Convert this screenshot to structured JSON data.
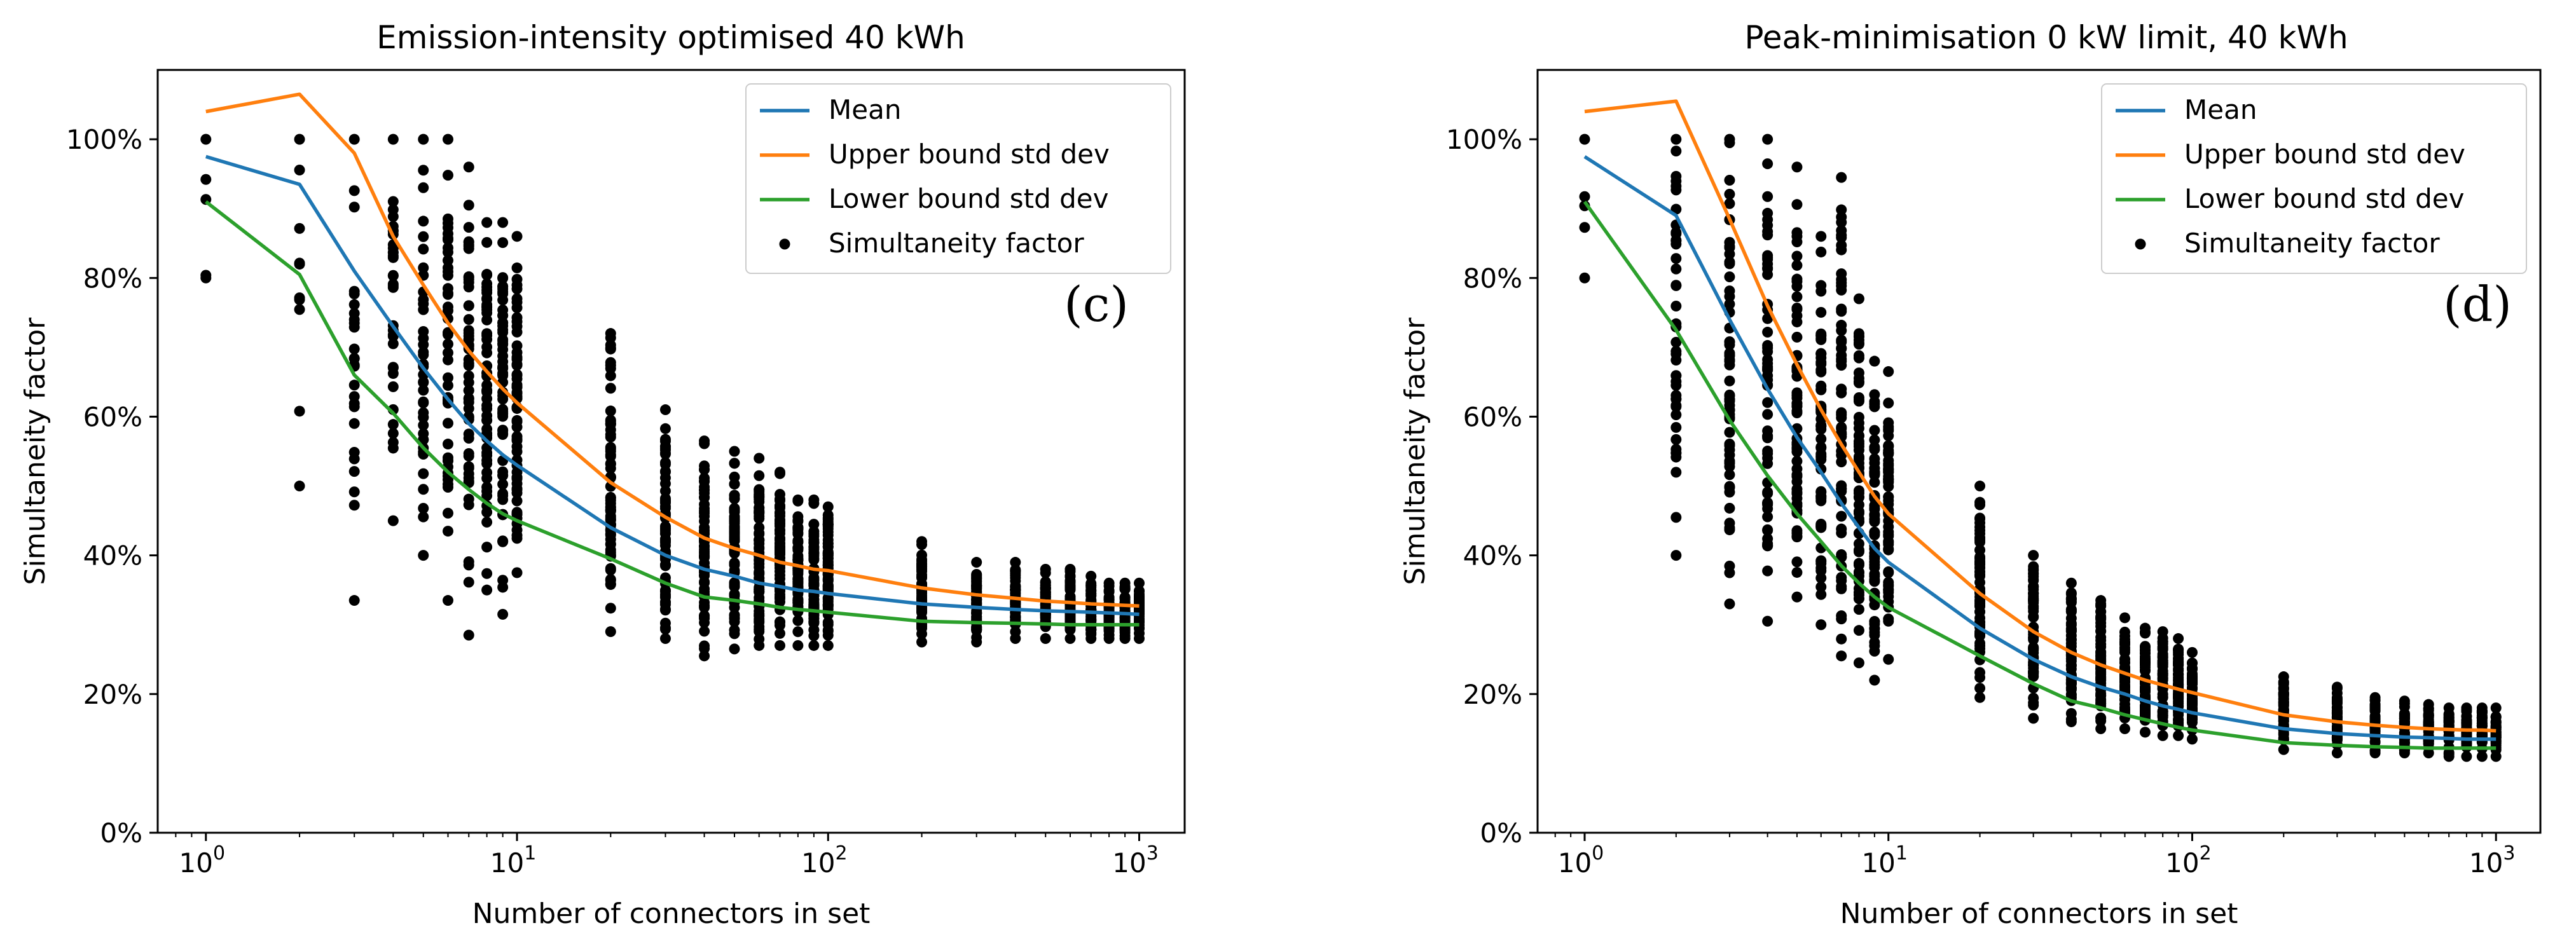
{
  "chart_data": [
    {
      "type": "scatter",
      "title": "Emission-intensity optimised 40 kWh",
      "panel_label": "(c)",
      "xlabel": "Number of connectors in set",
      "ylabel": "Simultaneity factor",
      "xscale": "log",
      "xlim": [
        0.7,
        1400
      ],
      "ylim": [
        0,
        110
      ],
      "x_ticks": [
        1,
        10,
        100,
        1000
      ],
      "x_tick_labels": [
        {
          "base": "10",
          "exp": "0"
        },
        {
          "base": "10",
          "exp": "1"
        },
        {
          "base": "10",
          "exp": "2"
        },
        {
          "base": "10",
          "exp": "3"
        }
      ],
      "y_ticks": [
        0,
        20,
        40,
        60,
        80,
        100
      ],
      "y_tick_labels": [
        "0%",
        "20%",
        "40%",
        "60%",
        "80%",
        "100%"
      ],
      "legend": {
        "position": "top-right",
        "entries": [
          {
            "label": "Mean",
            "color": "#1f77b4",
            "kind": "line"
          },
          {
            "label": "Upper bound std dev",
            "color": "#ff7f0e",
            "kind": "line"
          },
          {
            "label": "Lower bound std dev",
            "color": "#2ca02c",
            "kind": "line"
          },
          {
            "label": "Simultaneity factor",
            "color": "#000000",
            "kind": "dot"
          }
        ]
      },
      "series": [
        {
          "name": "Mean",
          "color": "#1f77b4",
          "x": [
            1,
            2,
            3,
            4,
            5,
            6,
            7,
            8,
            9,
            10,
            20,
            30,
            40,
            50,
            60,
            70,
            80,
            90,
            100,
            200,
            300,
            400,
            500,
            600,
            700,
            800,
            900,
            1000
          ],
          "y": [
            97.5,
            93.5,
            81,
            73,
            67,
            62.5,
            59,
            56.5,
            54.5,
            53,
            44,
            40,
            38,
            37,
            36,
            35.5,
            35,
            34.8,
            34.5,
            33,
            32.5,
            32.2,
            32,
            31.9,
            31.8,
            31.7,
            31.6,
            31.5
          ]
        },
        {
          "name": "Upper bound std dev",
          "color": "#ff7f0e",
          "x": [
            1,
            2,
            3,
            4,
            5,
            6,
            7,
            8,
            9,
            10,
            20,
            30,
            40,
            50,
            60,
            70,
            80,
            90,
            100,
            200,
            300,
            400,
            500,
            600,
            700,
            800,
            900,
            1000
          ],
          "y": [
            104,
            106.5,
            98,
            86,
            79,
            73.5,
            69.5,
            66.5,
            64,
            62,
            50.5,
            45.5,
            42.5,
            41,
            40,
            39,
            38.5,
            38,
            37.8,
            35.3,
            34.3,
            33.8,
            33.4,
            33.2,
            33,
            32.9,
            32.8,
            32.7
          ]
        },
        {
          "name": "Lower bound std dev",
          "color": "#2ca02c",
          "x": [
            1,
            2,
            3,
            4,
            5,
            6,
            7,
            8,
            9,
            10,
            20,
            30,
            40,
            50,
            60,
            70,
            80,
            90,
            100,
            200,
            300,
            400,
            500,
            600,
            700,
            800,
            900,
            1000
          ],
          "y": [
            91,
            80.5,
            66,
            60.5,
            55.5,
            52,
            49.5,
            47.5,
            46,
            45,
            39.5,
            36,
            34,
            33.5,
            33,
            32.5,
            32.2,
            32,
            31.8,
            30.5,
            30.3,
            30.2,
            30.1,
            30,
            30,
            30,
            30,
            30
          ]
        }
      ],
      "scatter": {
        "name": "Simultaneity factor",
        "color": "#000000",
        "columns": [
          {
            "x": 1,
            "min": 80,
            "max": 100,
            "n": 5
          },
          {
            "x": 2,
            "min": 50,
            "max": 100,
            "n": 10
          },
          {
            "x": 3,
            "min": 33.5,
            "max": 100,
            "n": 26
          },
          {
            "x": 4,
            "min": 45,
            "max": 100,
            "n": 34
          },
          {
            "x": 5,
            "min": 40,
            "max": 100,
            "n": 40
          },
          {
            "x": 6,
            "min": 33.5,
            "max": 100,
            "n": 46
          },
          {
            "x": 7,
            "min": 28.5,
            "max": 96,
            "n": 54
          },
          {
            "x": 8,
            "min": 35,
            "max": 88,
            "n": 56
          },
          {
            "x": 9,
            "min": 31.5,
            "max": 88,
            "n": 60
          },
          {
            "x": 10,
            "min": 37.5,
            "max": 86,
            "n": 60
          },
          {
            "x": 20,
            "min": 29,
            "max": 72,
            "n": 70
          },
          {
            "x": 30,
            "min": 28,
            "max": 61,
            "n": 70
          },
          {
            "x": 40,
            "min": 25.5,
            "max": 56.5,
            "n": 70
          },
          {
            "x": 50,
            "min": 26.5,
            "max": 55,
            "n": 70
          },
          {
            "x": 60,
            "min": 27,
            "max": 54,
            "n": 70
          },
          {
            "x": 70,
            "min": 27,
            "max": 52,
            "n": 70
          },
          {
            "x": 80,
            "min": 27,
            "max": 48,
            "n": 70
          },
          {
            "x": 90,
            "min": 27,
            "max": 48,
            "n": 70
          },
          {
            "x": 100,
            "min": 27,
            "max": 47,
            "n": 70
          },
          {
            "x": 200,
            "min": 27.5,
            "max": 42,
            "n": 60
          },
          {
            "x": 300,
            "min": 27.5,
            "max": 39,
            "n": 60
          },
          {
            "x": 400,
            "min": 28,
            "max": 39,
            "n": 56
          },
          {
            "x": 500,
            "min": 28,
            "max": 38,
            "n": 50
          },
          {
            "x": 600,
            "min": 28,
            "max": 38,
            "n": 50
          },
          {
            "x": 700,
            "min": 28,
            "max": 37,
            "n": 50
          },
          {
            "x": 800,
            "min": 28,
            "max": 36,
            "n": 48
          },
          {
            "x": 900,
            "min": 28,
            "max": 36,
            "n": 48
          },
          {
            "x": 1000,
            "min": 28,
            "max": 36,
            "n": 48
          }
        ]
      }
    },
    {
      "type": "scatter",
      "title": "Peak-minimisation 0 kW limit, 40 kWh",
      "panel_label": "(d)",
      "xlabel": "Number of connectors in set",
      "ylabel": "Simultaneity factor",
      "xscale": "log",
      "xlim": [
        0.7,
        1400
      ],
      "ylim": [
        0,
        110
      ],
      "x_ticks": [
        1,
        10,
        100,
        1000
      ],
      "x_tick_labels": [
        {
          "base": "10",
          "exp": "0"
        },
        {
          "base": "10",
          "exp": "1"
        },
        {
          "base": "10",
          "exp": "2"
        },
        {
          "base": "10",
          "exp": "3"
        }
      ],
      "y_ticks": [
        0,
        20,
        40,
        60,
        80,
        100
      ],
      "y_tick_labels": [
        "0%",
        "20%",
        "40%",
        "60%",
        "80%",
        "100%"
      ],
      "legend": {
        "position": "top-right",
        "entries": [
          {
            "label": "Mean",
            "color": "#1f77b4",
            "kind": "line"
          },
          {
            "label": "Upper bound std dev",
            "color": "#ff7f0e",
            "kind": "line"
          },
          {
            "label": "Lower bound std dev",
            "color": "#2ca02c",
            "kind": "line"
          },
          {
            "label": "Simultaneity factor",
            "color": "#000000",
            "kind": "dot"
          }
        ]
      },
      "series": [
        {
          "name": "Mean",
          "color": "#1f77b4",
          "x": [
            1,
            2,
            3,
            4,
            5,
            6,
            7,
            8,
            9,
            10,
            20,
            30,
            40,
            50,
            60,
            70,
            80,
            90,
            100,
            200,
            300,
            400,
            500,
            600,
            700,
            800,
            900,
            1000
          ],
          "y": [
            97.5,
            89,
            74,
            64,
            57,
            52,
            47.5,
            44,
            41,
            39,
            29.5,
            25,
            22.5,
            21,
            20,
            19,
            18.3,
            17.8,
            17.3,
            15,
            14.3,
            14,
            13.8,
            13.7,
            13.6,
            13.5,
            13.5,
            13.5
          ]
        },
        {
          "name": "Upper bound std dev",
          "color": "#ff7f0e",
          "x": [
            1,
            2,
            3,
            4,
            5,
            6,
            7,
            8,
            9,
            10,
            20,
            30,
            40,
            50,
            60,
            70,
            80,
            90,
            100,
            200,
            300,
            400,
            500,
            600,
            700,
            800,
            900,
            1000
          ],
          "y": [
            104,
            105.5,
            88.5,
            76,
            67.5,
            61,
            56,
            52,
            48.5,
            46,
            34.5,
            29,
            26,
            24.2,
            23,
            22,
            21.3,
            20.7,
            20.2,
            17,
            16,
            15.5,
            15.2,
            15,
            14.9,
            14.8,
            14.8,
            14.7
          ]
        },
        {
          "name": "Lower bound std dev",
          "color": "#2ca02c",
          "x": [
            1,
            2,
            3,
            4,
            5,
            6,
            7,
            8,
            9,
            10,
            20,
            30,
            40,
            50,
            60,
            70,
            80,
            90,
            100,
            200,
            300,
            400,
            500,
            600,
            700,
            800,
            900,
            1000
          ],
          "y": [
            91,
            72.5,
            59.5,
            51.5,
            46,
            42,
            38.5,
            36,
            34,
            32.5,
            25.5,
            21.5,
            19,
            18,
            17,
            16.3,
            15.7,
            15.2,
            14.8,
            13,
            12.6,
            12.4,
            12.3,
            12.2,
            12.2,
            12.2,
            12.2,
            12.2
          ]
        }
      ],
      "scatter": {
        "name": "Simultaneity factor",
        "color": "#000000",
        "columns": [
          {
            "x": 1,
            "min": 80,
            "max": 100,
            "n": 5
          },
          {
            "x": 2,
            "min": 40,
            "max": 100,
            "n": 44
          },
          {
            "x": 3,
            "min": 33,
            "max": 100,
            "n": 60
          },
          {
            "x": 4,
            "min": 30.5,
            "max": 100,
            "n": 60
          },
          {
            "x": 5,
            "min": 34,
            "max": 96,
            "n": 60
          },
          {
            "x": 6,
            "min": 30,
            "max": 86,
            "n": 62
          },
          {
            "x": 7,
            "min": 25.5,
            "max": 94.5,
            "n": 64
          },
          {
            "x": 8,
            "min": 24.5,
            "max": 77,
            "n": 64
          },
          {
            "x": 9,
            "min": 22,
            "max": 68,
            "n": 64
          },
          {
            "x": 10,
            "min": 25,
            "max": 66.5,
            "n": 62
          },
          {
            "x": 20,
            "min": 19.5,
            "max": 50,
            "n": 62
          },
          {
            "x": 30,
            "min": 16.5,
            "max": 40,
            "n": 60
          },
          {
            "x": 40,
            "min": 16,
            "max": 36,
            "n": 58
          },
          {
            "x": 50,
            "min": 15,
            "max": 33.5,
            "n": 56
          },
          {
            "x": 60,
            "min": 15,
            "max": 31,
            "n": 56
          },
          {
            "x": 70,
            "min": 14.5,
            "max": 29.5,
            "n": 54
          },
          {
            "x": 80,
            "min": 14,
            "max": 29,
            "n": 54
          },
          {
            "x": 90,
            "min": 14,
            "max": 28,
            "n": 54
          },
          {
            "x": 100,
            "min": 13.5,
            "max": 26,
            "n": 52
          },
          {
            "x": 200,
            "min": 12,
            "max": 22.5,
            "n": 46
          },
          {
            "x": 300,
            "min": 11.5,
            "max": 21,
            "n": 44
          },
          {
            "x": 400,
            "min": 11.5,
            "max": 19.5,
            "n": 40
          },
          {
            "x": 500,
            "min": 11.5,
            "max": 19,
            "n": 40
          },
          {
            "x": 600,
            "min": 11.5,
            "max": 18.5,
            "n": 38
          },
          {
            "x": 700,
            "min": 11,
            "max": 18,
            "n": 38
          },
          {
            "x": 800,
            "min": 11,
            "max": 18,
            "n": 38
          },
          {
            "x": 900,
            "min": 11,
            "max": 18,
            "n": 38
          },
          {
            "x": 1000,
            "min": 11,
            "max": 18,
            "n": 38
          }
        ]
      }
    }
  ]
}
